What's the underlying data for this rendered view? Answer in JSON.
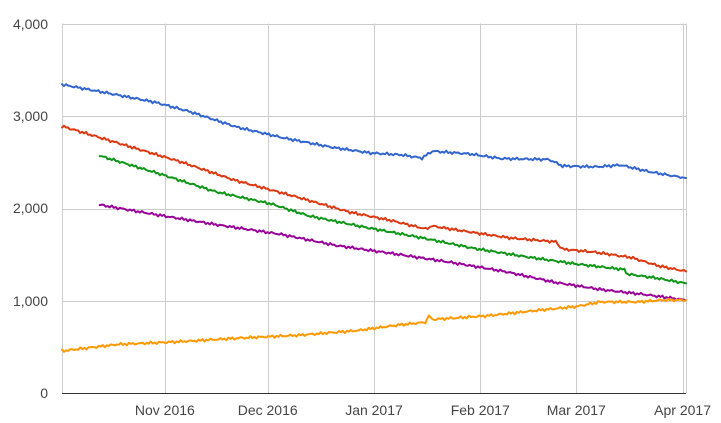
{
  "chart_data": {
    "type": "line",
    "title": "",
    "xlabel": "",
    "ylabel": "",
    "ylim": [
      0,
      4000
    ],
    "xlim": [
      "2016-10-02",
      "2017-04-02"
    ],
    "grid": true,
    "legend": "none",
    "y_ticks": [
      "0",
      "1,000",
      "2,000",
      "3,000",
      "4,000"
    ],
    "y_tick_values": [
      0,
      1000,
      2000,
      3000,
      4000
    ],
    "x_ticks": [
      "Nov 2016",
      "Dec 2016",
      "Jan 2017",
      "Feb 2017",
      "Mar 2017",
      "Apr 2017"
    ],
    "x_tick_dates": [
      "2016-11-01",
      "2016-12-01",
      "2017-01-01",
      "2017-02-01",
      "2017-03-01",
      "2017-04-01"
    ],
    "series": [
      {
        "color": "#3366cc",
        "points": [
          [
            "2016-10-02",
            3340
          ],
          [
            "2016-10-15",
            3250
          ],
          [
            "2016-10-29",
            3150
          ],
          [
            "2016-11-08",
            3050
          ],
          [
            "2016-11-22",
            2880
          ],
          [
            "2016-12-06",
            2760
          ],
          [
            "2016-12-20",
            2660
          ],
          [
            "2016-12-31",
            2600
          ],
          [
            "2017-01-09",
            2580
          ],
          [
            "2017-01-15",
            2545
          ],
          [
            "2017-01-18",
            2620
          ],
          [
            "2017-01-29",
            2590
          ],
          [
            "2017-02-07",
            2540
          ],
          [
            "2017-02-21",
            2530
          ],
          [
            "2017-02-25",
            2460
          ],
          [
            "2017-03-07",
            2450
          ],
          [
            "2017-03-14",
            2470
          ],
          [
            "2017-03-22",
            2400
          ],
          [
            "2017-03-28",
            2360
          ],
          [
            "2017-04-02",
            2330
          ]
        ]
      },
      {
        "color": "#dc3912",
        "points": [
          [
            "2016-10-02",
            2890
          ],
          [
            "2016-10-19",
            2700
          ],
          [
            "2016-11-06",
            2500
          ],
          [
            "2016-11-21",
            2310
          ],
          [
            "2016-12-08",
            2140
          ],
          [
            "2016-12-25",
            1960
          ],
          [
            "2017-01-06",
            1870
          ],
          [
            "2017-01-16",
            1780
          ],
          [
            "2017-01-18",
            1810
          ],
          [
            "2017-01-30",
            1740
          ],
          [
            "2017-02-10",
            1680
          ],
          [
            "2017-02-23",
            1640
          ],
          [
            "2017-02-25",
            1560
          ],
          [
            "2017-03-06",
            1530
          ],
          [
            "2017-03-17",
            1470
          ],
          [
            "2017-03-25",
            1380
          ],
          [
            "2017-04-02",
            1320
          ]
        ]
      },
      {
        "color": "#109618",
        "points": [
          [
            "2016-10-13",
            2570
          ],
          [
            "2016-10-30",
            2380
          ],
          [
            "2016-11-16",
            2180
          ],
          [
            "2016-12-02",
            2050
          ],
          [
            "2016-12-13",
            1920
          ],
          [
            "2016-12-29",
            1800
          ],
          [
            "2017-01-14",
            1690
          ],
          [
            "2017-01-30",
            1570
          ],
          [
            "2017-02-14",
            1480
          ],
          [
            "2017-03-01",
            1400
          ],
          [
            "2017-03-15",
            1340
          ],
          [
            "2017-03-16",
            1290
          ],
          [
            "2017-03-24",
            1250
          ],
          [
            "2017-04-02",
            1190
          ]
        ]
      },
      {
        "color": "#990099",
        "points": [
          [
            "2016-10-13",
            2040
          ],
          [
            "2016-10-30",
            1930
          ],
          [
            "2016-11-17",
            1820
          ],
          [
            "2016-12-05",
            1720
          ],
          [
            "2016-12-21",
            1600
          ],
          [
            "2017-01-07",
            1510
          ],
          [
            "2017-01-23",
            1420
          ],
          [
            "2017-02-08",
            1320
          ],
          [
            "2017-02-23",
            1200
          ],
          [
            "2017-03-09",
            1120
          ],
          [
            "2017-03-21",
            1070
          ],
          [
            "2017-04-02",
            1010
          ]
        ]
      },
      {
        "color": "#ff9900",
        "points": [
          [
            "2016-10-02",
            460
          ],
          [
            "2016-10-18",
            530
          ],
          [
            "2016-11-05",
            560
          ],
          [
            "2016-11-23",
            600
          ],
          [
            "2016-12-10",
            630
          ],
          [
            "2016-12-27",
            680
          ],
          [
            "2017-01-08",
            740
          ],
          [
            "2017-01-16",
            770
          ],
          [
            "2017-01-17",
            840
          ],
          [
            "2017-01-18",
            800
          ],
          [
            "2017-02-03",
            840
          ],
          [
            "2017-02-18",
            900
          ],
          [
            "2017-03-01",
            940
          ],
          [
            "2017-03-08",
            990
          ],
          [
            "2017-03-19",
            990
          ],
          [
            "2017-03-26",
            1010
          ],
          [
            "2017-04-02",
            1010
          ]
        ]
      }
    ]
  }
}
